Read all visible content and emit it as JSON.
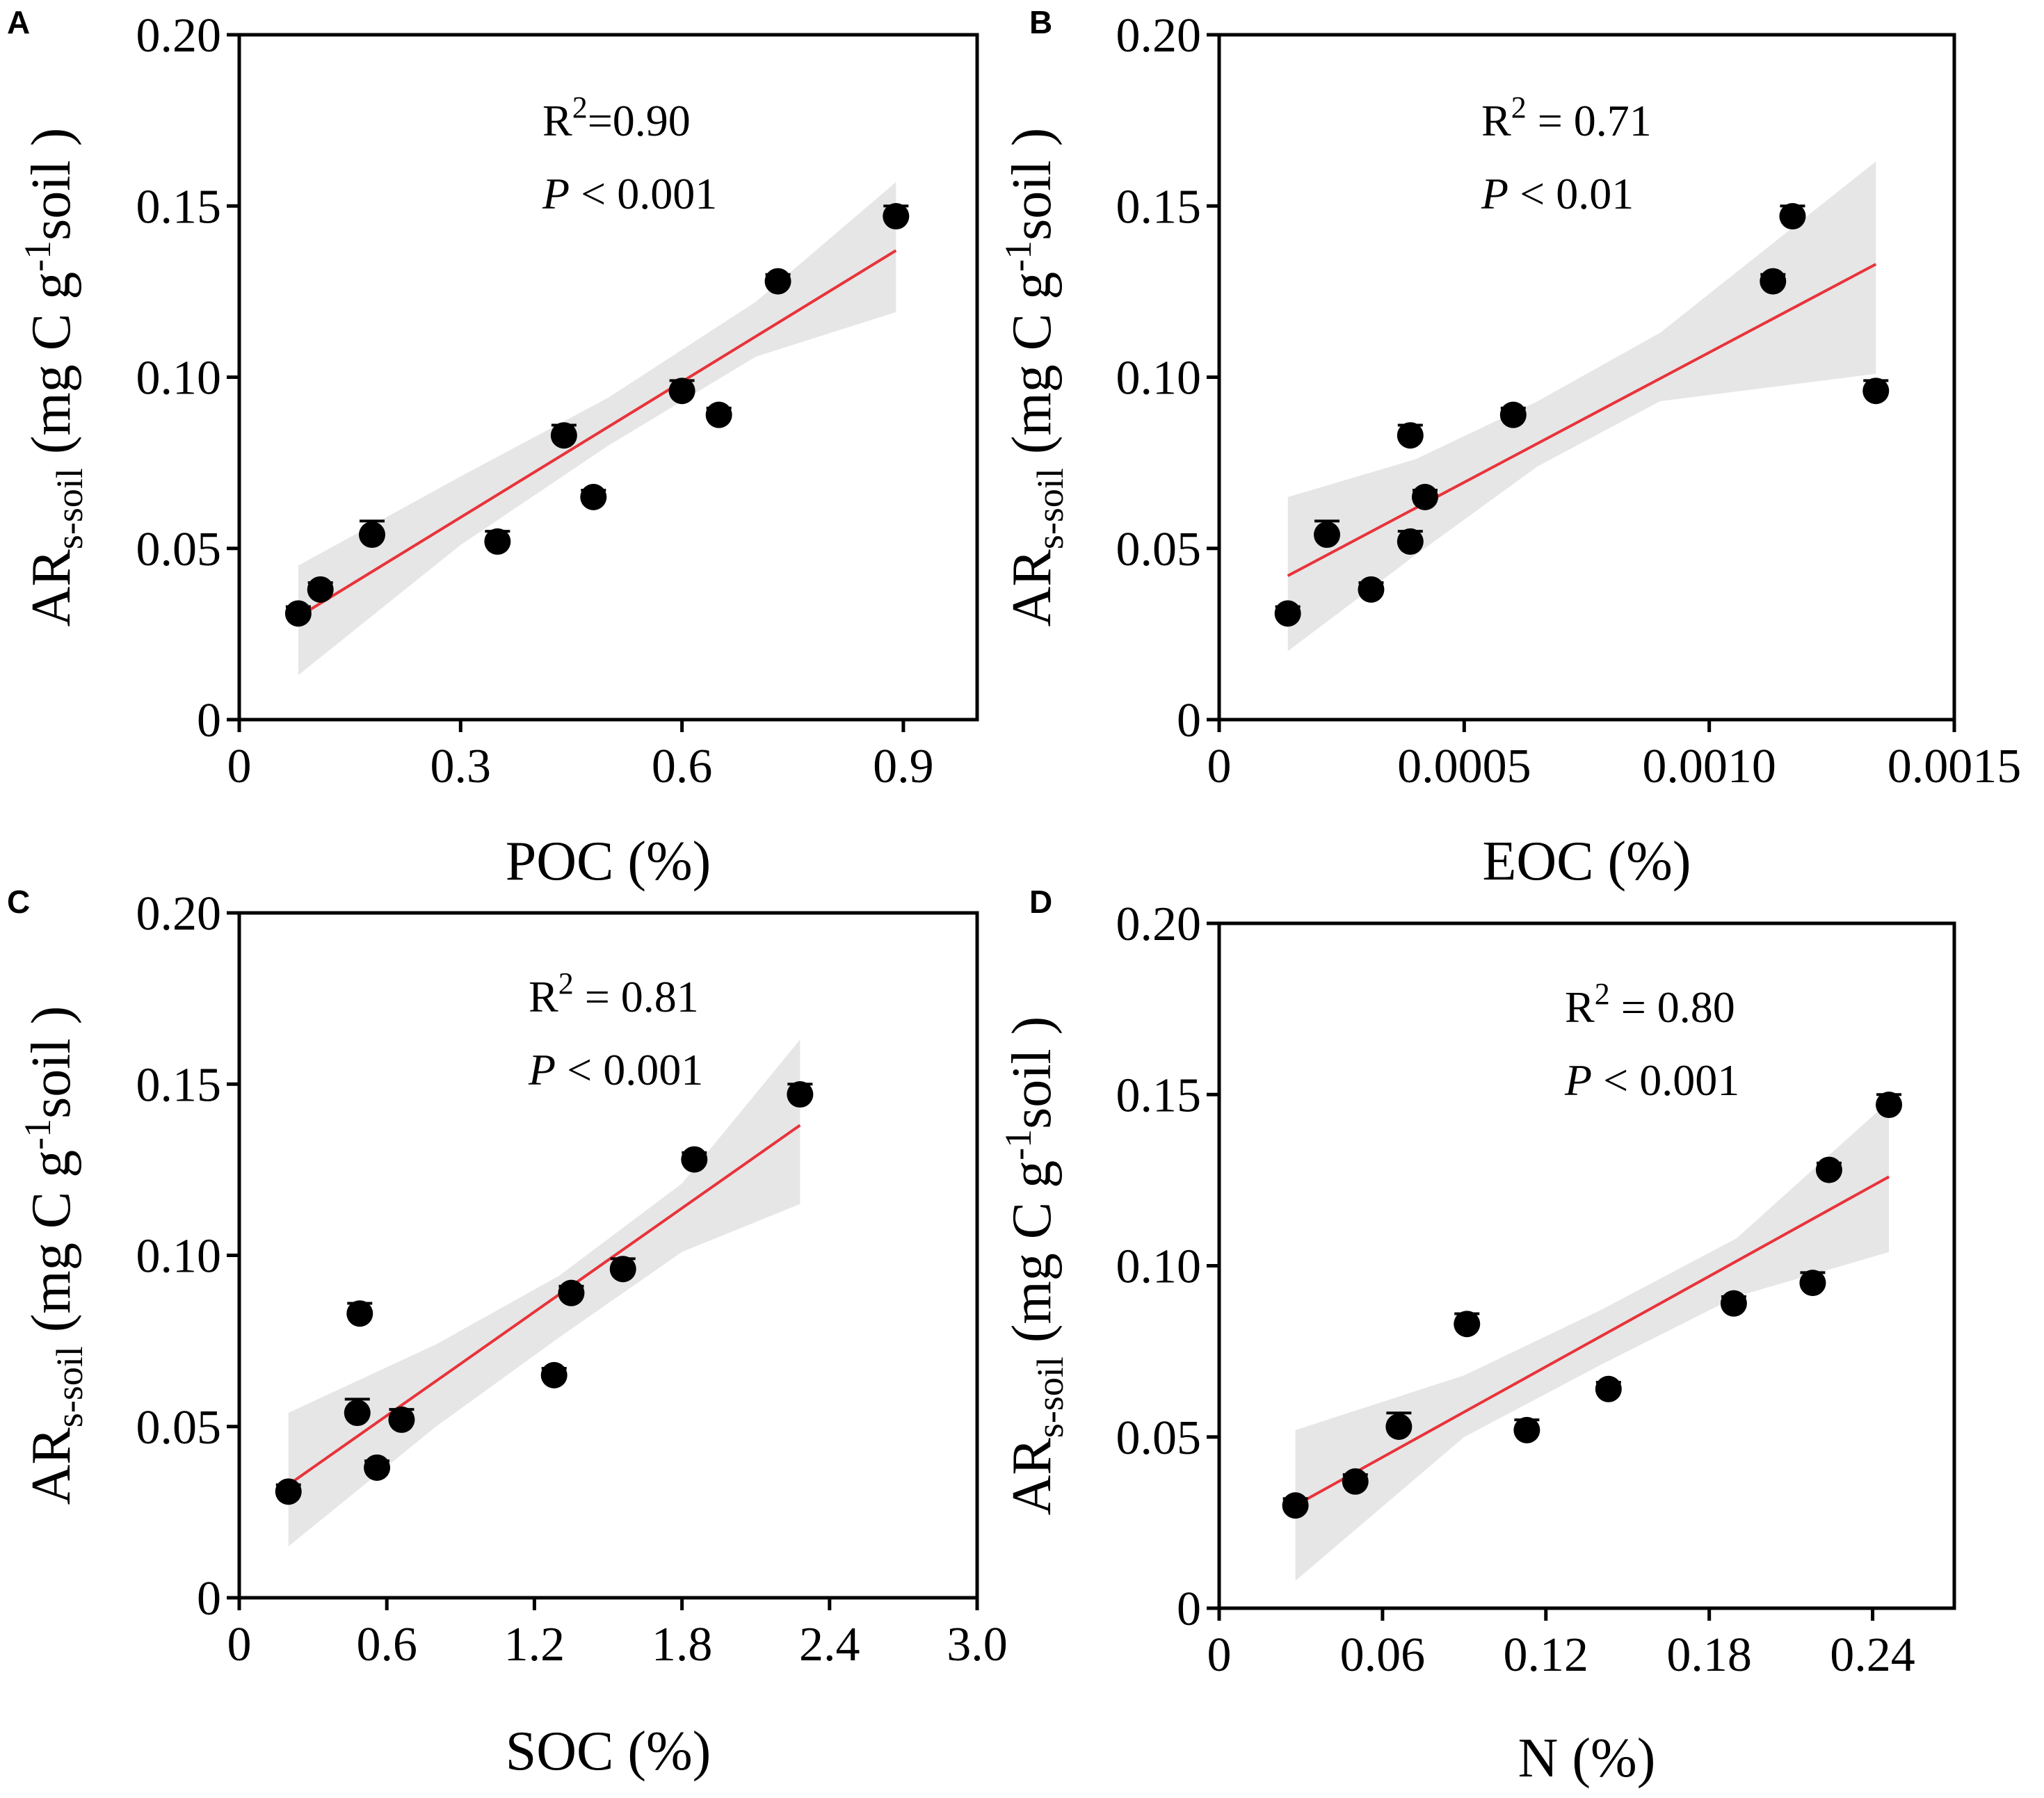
{
  "colors": {
    "point": "#000000",
    "fit_line": "#e8333a",
    "ci_band": "#e6e6e6",
    "axis": "#000000"
  },
  "chart_data": [
    {
      "type": "scatter",
      "panel": "A",
      "xlabel": "POC (%)",
      "ylabel": {
        "main": "AR",
        "sub": "s-soil",
        "units_open": " (mg C g",
        "sup": "-1",
        "units_close": "soil )"
      },
      "xlim": [
        0,
        1.0
      ],
      "ylim": [
        0,
        0.2
      ],
      "xticks": [
        0,
        0.3,
        0.6,
        0.9
      ],
      "xtick_labels": [
        "0",
        "0.3",
        "0.6",
        "0.9"
      ],
      "yticks": [
        0,
        0.05,
        0.1,
        0.15,
        0.2
      ],
      "ytick_labels": [
        "0",
        "0.05",
        "0.10",
        "0.15",
        "0.20"
      ],
      "annotation": {
        "r2_label": "R",
        "r2_sup": "2",
        "r2_value": "=0.90",
        "p_label": "P",
        "p_value": "< 0.001"
      },
      "points": [
        {
          "x": 0.08,
          "y": 0.031,
          "err": 0.002
        },
        {
          "x": 0.11,
          "y": 0.038,
          "err": 0.002
        },
        {
          "x": 0.18,
          "y": 0.054,
          "err": 0.004
        },
        {
          "x": 0.35,
          "y": 0.052,
          "err": 0.003
        },
        {
          "x": 0.44,
          "y": 0.083,
          "err": 0.003
        },
        {
          "x": 0.48,
          "y": 0.065,
          "err": 0.002
        },
        {
          "x": 0.6,
          "y": 0.096,
          "err": 0.003
        },
        {
          "x": 0.65,
          "y": 0.089,
          "err": 0.002
        },
        {
          "x": 0.73,
          "y": 0.128,
          "err": 0.002
        },
        {
          "x": 0.89,
          "y": 0.147,
          "err": 0.003
        }
      ],
      "fit": {
        "x": [
          0.08,
          0.89
        ],
        "y": [
          0.03,
          0.137
        ]
      },
      "ci": {
        "x": [
          0.08,
          0.3,
          0.5,
          0.7,
          0.89
        ],
        "lower": [
          0.013,
          0.051,
          0.08,
          0.106,
          0.119
        ],
        "upper": [
          0.045,
          0.071,
          0.094,
          0.122,
          0.157
        ]
      }
    },
    {
      "type": "scatter",
      "panel": "B",
      "xlabel": "EOC (%)",
      "ylabel": {
        "main": "AR",
        "sub": "s-soil",
        "units_open": " (mg C g",
        "sup": "-1",
        "units_close": "soil )"
      },
      "xlim": [
        0,
        0.0015
      ],
      "ylim": [
        0,
        0.2
      ],
      "xticks": [
        0,
        0.0005,
        0.001,
        0.0015
      ],
      "xtick_labels": [
        "0",
        "0.0005",
        "0.0010",
        "0.0015"
      ],
      "yticks": [
        0,
        0.05,
        0.1,
        0.15,
        0.2
      ],
      "ytick_labels": [
        "0",
        "0.05",
        "0.10",
        "0.15",
        "0.20"
      ],
      "annotation": {
        "r2_label": "R",
        "r2_sup": "2",
        "r2_value": " = 0.71",
        "p_label": "P",
        "p_value": "< 0.01"
      },
      "points": [
        {
          "x": 0.00014,
          "y": 0.031,
          "err": 0.002
        },
        {
          "x": 0.00022,
          "y": 0.054,
          "err": 0.004
        },
        {
          "x": 0.00031,
          "y": 0.038,
          "err": 0.002
        },
        {
          "x": 0.00039,
          "y": 0.052,
          "err": 0.003
        },
        {
          "x": 0.00039,
          "y": 0.083,
          "err": 0.003
        },
        {
          "x": 0.00042,
          "y": 0.065,
          "err": 0.002
        },
        {
          "x": 0.0006,
          "y": 0.089,
          "err": 0.002
        },
        {
          "x": 0.00113,
          "y": 0.128,
          "err": 0.002
        },
        {
          "x": 0.00117,
          "y": 0.147,
          "err": 0.003
        },
        {
          "x": 0.00134,
          "y": 0.096,
          "err": 0.003
        }
      ],
      "fit": {
        "x": [
          0.00014,
          0.00134
        ],
        "y": [
          0.042,
          0.133
        ]
      },
      "ci": {
        "x": [
          0.00014,
          0.0004,
          0.00065,
          0.0009,
          0.00134
        ],
        "lower": [
          0.02,
          0.048,
          0.074,
          0.093,
          0.101
        ],
        "upper": [
          0.065,
          0.076,
          0.093,
          0.113,
          0.163
        ]
      }
    },
    {
      "type": "scatter",
      "panel": "C",
      "xlabel": "SOC (%)",
      "ylabel": {
        "main": "AR",
        "sub": "s-soil",
        "units_open": " (mg C g",
        "sup": "-1",
        "units_close": "soil )"
      },
      "xlim": [
        0,
        3.0
      ],
      "ylim": [
        0,
        0.2
      ],
      "xticks": [
        0,
        0.6,
        1.2,
        1.8,
        2.4,
        3.0
      ],
      "xtick_labels": [
        "0",
        "0.6",
        "1.2",
        "1.8",
        "2.4",
        "3.0"
      ],
      "yticks": [
        0,
        0.05,
        0.1,
        0.15,
        0.2
      ],
      "ytick_labels": [
        "0",
        "0.05",
        "0.10",
        "0.15",
        "0.20"
      ],
      "annotation": {
        "r2_label": "R",
        "r2_sup": "2",
        "r2_value": " = 0.81",
        "p_label": "P",
        "p_value": "< 0.001"
      },
      "points": [
        {
          "x": 0.2,
          "y": 0.031,
          "err": 0.002
        },
        {
          "x": 0.48,
          "y": 0.054,
          "err": 0.004
        },
        {
          "x": 0.49,
          "y": 0.083,
          "err": 0.003
        },
        {
          "x": 0.56,
          "y": 0.038,
          "err": 0.002
        },
        {
          "x": 0.66,
          "y": 0.052,
          "err": 0.003
        },
        {
          "x": 1.28,
          "y": 0.065,
          "err": 0.002
        },
        {
          "x": 1.35,
          "y": 0.089,
          "err": 0.002
        },
        {
          "x": 1.56,
          "y": 0.096,
          "err": 0.003
        },
        {
          "x": 1.85,
          "y": 0.128,
          "err": 0.002
        },
        {
          "x": 2.28,
          "y": 0.147,
          "err": 0.003
        }
      ],
      "fit": {
        "x": [
          0.2,
          2.28
        ],
        "y": [
          0.033,
          0.138
        ]
      },
      "ci": {
        "x": [
          0.2,
          0.8,
          1.3,
          1.8,
          2.28
        ],
        "lower": [
          0.015,
          0.05,
          0.076,
          0.101,
          0.115
        ],
        "upper": [
          0.054,
          0.074,
          0.094,
          0.121,
          0.163
        ]
      }
    },
    {
      "type": "scatter",
      "panel": "D",
      "xlabel": "N (%)",
      "ylabel": {
        "main": "AR",
        "sub": "s-soil",
        "units_open": " (mg C g",
        "sup": "-1",
        "units_close": "soil )"
      },
      "xlim": [
        0,
        0.27
      ],
      "ylim": [
        0,
        0.2
      ],
      "xticks": [
        0,
        0.06,
        0.12,
        0.18,
        0.24
      ],
      "xtick_labels": [
        "0",
        "0.06",
        "0.12",
        "0.18",
        "0.24"
      ],
      "yticks": [
        0,
        0.05,
        0.1,
        0.15,
        0.2
      ],
      "ytick_labels": [
        "0",
        "0.05",
        "0.10",
        "0.15",
        "0.20"
      ],
      "annotation": {
        "r2_label": "R",
        "r2_sup": "2",
        "r2_value": " = 0.80",
        "p_label": "P",
        "p_value": "< 0.001"
      },
      "points": [
        {
          "x": 0.028,
          "y": 0.03,
          "err": 0.002
        },
        {
          "x": 0.05,
          "y": 0.037,
          "err": 0.002
        },
        {
          "x": 0.066,
          "y": 0.053,
          "err": 0.004
        },
        {
          "x": 0.091,
          "y": 0.083,
          "err": 0.003
        },
        {
          "x": 0.113,
          "y": 0.052,
          "err": 0.003
        },
        {
          "x": 0.143,
          "y": 0.064,
          "err": 0.002
        },
        {
          "x": 0.189,
          "y": 0.089,
          "err": 0.002
        },
        {
          "x": 0.218,
          "y": 0.095,
          "err": 0.003
        },
        {
          "x": 0.224,
          "y": 0.128,
          "err": 0.002
        },
        {
          "x": 0.246,
          "y": 0.147,
          "err": 0.003
        }
      ],
      "fit": {
        "x": [
          0.028,
          0.246
        ],
        "y": [
          0.03,
          0.126
        ]
      },
      "ci": {
        "x": [
          0.028,
          0.09,
          0.14,
          0.19,
          0.246
        ],
        "lower": [
          0.008,
          0.05,
          0.071,
          0.091,
          0.104
        ],
        "upper": [
          0.052,
          0.068,
          0.087,
          0.108,
          0.148
        ]
      }
    }
  ]
}
